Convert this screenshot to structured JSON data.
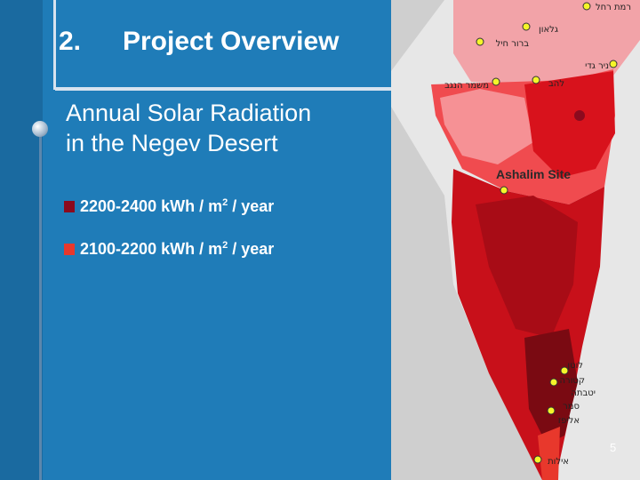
{
  "slide": {
    "number": "2.",
    "title": "Project Overview",
    "subtitle_line1": "Annual Solar Radiation",
    "subtitle_line2": "in the Negev Desert",
    "page_number": "5"
  },
  "legend": [
    {
      "range": "2200-2400 kWh / m",
      "exp": "2",
      "suffix": " / year",
      "color": "#8b0a1e"
    },
    {
      "range": "2100-2200 kWh / m",
      "exp": "2",
      "suffix": " / year",
      "color": "#e8382c"
    }
  ],
  "map": {
    "site_label": "Ashalim Site",
    "towns": {
      "ramat_rachel": "רמת רחל",
      "galon": "גלאון",
      "bror_hayil": "ברור חיל",
      "nir_gadi": "ניר גדי",
      "mishmar_hanegev": "משמר הנגב",
      "lahav": "להב",
      "lotan": "לוטן",
      "ketura": "קטורה",
      "yotvata": "יטבתה",
      "samar": "סמר",
      "elifaz": "אליפז",
      "eilat": "אילות"
    }
  }
}
